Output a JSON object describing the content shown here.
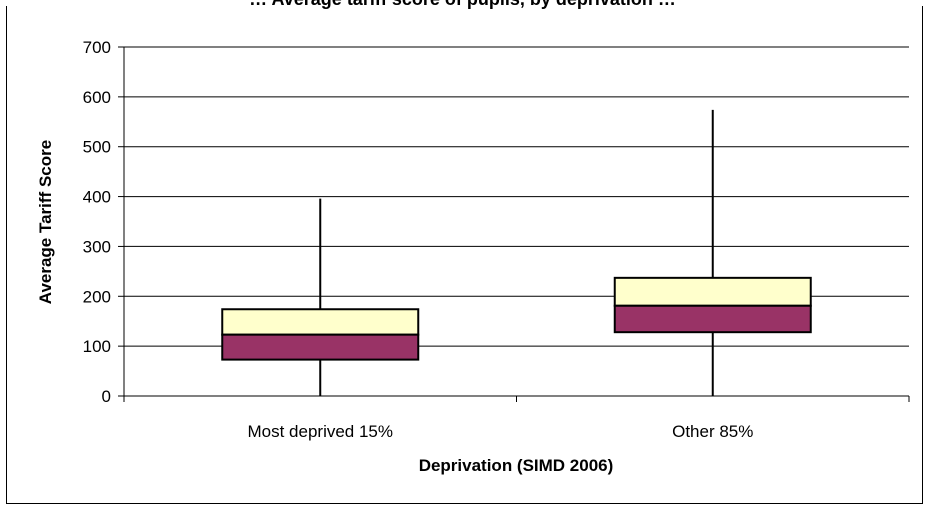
{
  "chart_data": {
    "type": "box",
    "title": "… Average tariff score of pupils, by deprivation …",
    "xlabel": "Deprivation (SIMD 2006)",
    "ylabel": "Average Tariff Score",
    "ylim": [
      0,
      700
    ],
    "yticks": [
      0,
      100,
      200,
      300,
      400,
      500,
      600,
      700
    ],
    "grid": true,
    "categories": [
      "Most deprived 15%",
      "Other 85%"
    ],
    "boxes": [
      {
        "category": "Most deprived 15%",
        "min": 0,
        "q1": 73,
        "median": 123,
        "q3": 174,
        "max": 396
      },
      {
        "category": "Other 85%",
        "min": 0,
        "q1": 128,
        "median": 181,
        "q3": 237,
        "max": 574
      }
    ],
    "colors": {
      "lower_box": "#993366",
      "upper_box": "#ffffcc",
      "grid": "#000000"
    }
  }
}
